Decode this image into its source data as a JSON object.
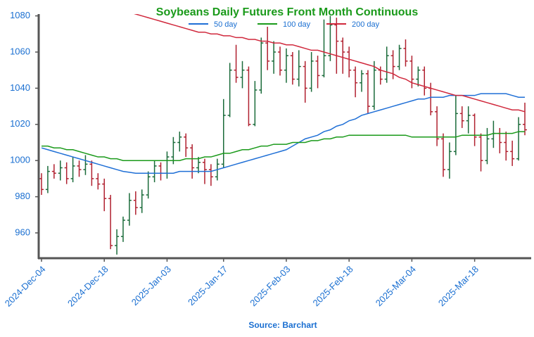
{
  "chart_data": {
    "type": "ohlc",
    "title": "Soybeans Daily Futures Front Month Continuous",
    "source": "Source: Barchart",
    "title_color": "#1a9a1a",
    "label_color": "#1a6fd1",
    "x": [
      "2024-Dec-04",
      "2024-Dec-05",
      "2024-Dec-06",
      "2024-Dec-09",
      "2024-Dec-10",
      "2024-Dec-11",
      "2024-Dec-12",
      "2024-Dec-13",
      "2024-Dec-16",
      "2024-Dec-17",
      "2024-Dec-18",
      "2024-Dec-19",
      "2024-Dec-20",
      "2024-Dec-23",
      "2024-Dec-24",
      "2024-Dec-26",
      "2024-Dec-27",
      "2024-Dec-30",
      "2024-Dec-31",
      "2025-Jan-02",
      "2025-Jan-03",
      "2025-Jan-06",
      "2025-Jan-07",
      "2025-Jan-08",
      "2025-Jan-10",
      "2025-Jan-13",
      "2025-Jan-14",
      "2025-Jan-15",
      "2025-Jan-16",
      "2025-Jan-17",
      "2025-Jan-21",
      "2025-Jan-22",
      "2025-Jan-23",
      "2025-Jan-24",
      "2025-Jan-27",
      "2025-Jan-28",
      "2025-Jan-29",
      "2025-Jan-30",
      "2025-Jan-31",
      "2025-Feb-03",
      "2025-Feb-04",
      "2025-Feb-05",
      "2025-Feb-06",
      "2025-Feb-07",
      "2025-Feb-10",
      "2025-Feb-11",
      "2025-Feb-12",
      "2025-Feb-13",
      "2025-Feb-14",
      "2025-Feb-18",
      "2025-Feb-19",
      "2025-Feb-20",
      "2025-Feb-21",
      "2025-Feb-24",
      "2025-Feb-25",
      "2025-Feb-26",
      "2025-Feb-27",
      "2025-Feb-28",
      "2025-Mar-03",
      "2025-Mar-04",
      "2025-Mar-05",
      "2025-Mar-06",
      "2025-Mar-07",
      "2025-Mar-10",
      "2025-Mar-11",
      "2025-Mar-12",
      "2025-Mar-13",
      "2025-Mar-14",
      "2025-Mar-17",
      "2025-Mar-18",
      "2025-Mar-19",
      "2025-Mar-20",
      "2025-Mar-21",
      "2025-Mar-24",
      "2025-Mar-25",
      "2025-Mar-26",
      "2025-Mar-27",
      "2025-Mar-28"
    ],
    "xticks": [
      "2024-Dec-04",
      "2024-Dec-18",
      "2025-Jan-03",
      "2025-Jan-17",
      "2025-Feb-03",
      "2025-Feb-18",
      "2025-Mar-04",
      "2025-Mar-18"
    ],
    "ylim": [
      946,
      1081
    ],
    "yticks": [
      960,
      980,
      1000,
      1020,
      1040,
      1060,
      1080
    ],
    "ohlc": {
      "up_color": "#1a6b3a",
      "down_color": "#b0202f",
      "open": [
        990,
        984,
        994,
        993,
        996,
        990,
        997,
        995,
        998,
        990,
        987,
        979,
        953,
        958,
        967,
        978,
        974,
        981,
        991,
        997,
        993,
        1002,
        1010,
        1013,
        1007,
        996,
        999,
        995,
        991,
        998,
        1025,
        1050,
        1046,
        1050,
        1020,
        1039,
        1065,
        1055,
        1060,
        1050,
        1058,
        1045,
        1052,
        1040,
        1055,
        1047,
        1058,
        1075,
        1066,
        1060,
        1050,
        1043,
        1048,
        1030,
        1050,
        1045,
        1058,
        1052,
        1062,
        1055,
        1045,
        1050,
        1040,
        1027,
        1012,
        995,
        1005,
        1026,
        1022,
        1025,
        1013,
        1000,
        1012,
        1015,
        1010,
        1005,
        1001,
        1020
      ],
      "high": [
        993,
        997,
        998,
        1000,
        999,
        1002,
        1000,
        1003,
        1000,
        993,
        990,
        981,
        962,
        969,
        982,
        983,
        984,
        994,
        1000,
        999,
        1005,
        1013,
        1016,
        1015,
        1009,
        1002,
        1001,
        998,
        1001,
        1034,
        1054,
        1064,
        1055,
        1052,
        1044,
        1068,
        1074,
        1066,
        1063,
        1062,
        1060,
        1061,
        1055,
        1060,
        1058,
        1078,
        1080,
        1079,
        1068,
        1063,
        1052,
        1050,
        1050,
        1055,
        1052,
        1063,
        1061,
        1064,
        1067,
        1058,
        1052,
        1052,
        1043,
        1030,
        1015,
        1010,
        1036,
        1030,
        1030,
        1026,
        1015,
        1018,
        1022,
        1018,
        1016,
        1011,
        1024,
        1032
      ],
      "low": [
        981,
        982,
        990,
        989,
        987,
        988,
        991,
        992,
        986,
        984,
        972,
        951,
        948,
        955,
        964,
        970,
        971,
        979,
        988,
        989,
        990,
        998,
        1005,
        1002,
        990,
        993,
        987,
        986,
        989,
        996,
        1024,
        1043,
        1040,
        1019,
        1019,
        1037,
        1050,
        1048,
        1047,
        1043,
        1042,
        1041,
        1032,
        1038,
        1040,
        1046,
        1055,
        1048,
        1048,
        1046,
        1035,
        1038,
        1026,
        1028,
        1042,
        1043,
        1045,
        1050,
        1052,
        1040,
        1041,
        1036,
        1025,
        1008,
        991,
        990,
        1003,
        1018,
        1015,
        1008,
        994,
        998,
        1007,
        1004,
        1000,
        997,
        1000,
        1014
      ],
      "close": [
        984,
        994,
        993,
        996,
        990,
        997,
        995,
        998,
        990,
        987,
        979,
        953,
        958,
        967,
        978,
        974,
        981,
        991,
        997,
        993,
        1002,
        1010,
        1013,
        1007,
        996,
        999,
        995,
        991,
        998,
        1025,
        1050,
        1046,
        1050,
        1020,
        1039,
        1065,
        1055,
        1060,
        1050,
        1058,
        1045,
        1052,
        1040,
        1055,
        1047,
        1058,
        1075,
        1066,
        1060,
        1050,
        1043,
        1048,
        1030,
        1050,
        1045,
        1058,
        1052,
        1062,
        1055,
        1045,
        1050,
        1040,
        1027,
        1012,
        995,
        1005,
        1026,
        1022,
        1025,
        1013,
        1000,
        1012,
        1015,
        1010,
        1005,
        1001,
        1020,
        1017
      ]
    },
    "series": [
      {
        "name": "50 day",
        "color": "#1f6fd6",
        "values": [
          1007,
          1006,
          1005,
          1004,
          1003,
          1002,
          1001,
          1000,
          999,
          998,
          997,
          996,
          995,
          994,
          993.5,
          993,
          993,
          993,
          993,
          993,
          993,
          993,
          994,
          994,
          994,
          994,
          994,
          994,
          995,
          996,
          997,
          998,
          999,
          1000,
          1001,
          1002,
          1003,
          1004,
          1005,
          1006,
          1008,
          1010,
          1012,
          1013,
          1014,
          1016,
          1017,
          1019,
          1020,
          1022,
          1023,
          1025,
          1026,
          1027,
          1028,
          1029,
          1030,
          1031,
          1032,
          1033,
          1034,
          1034,
          1035,
          1035,
          1035,
          1036,
          1036,
          1036,
          1036,
          1036,
          1037,
          1037,
          1037,
          1037,
          1037,
          1036,
          1035,
          1035
        ]
      },
      {
        "name": "100 day",
        "color": "#1a9a1a",
        "values": [
          1008,
          1008,
          1007,
          1007,
          1006,
          1006,
          1005,
          1004,
          1003,
          1002,
          1002,
          1001,
          1001,
          1000,
          1000,
          1000,
          1000,
          1000,
          1000,
          1000,
          1000,
          1000,
          1000,
          1001,
          1001,
          1001,
          1002,
          1002,
          1003,
          1004,
          1004,
          1005,
          1006,
          1006,
          1007,
          1008,
          1008,
          1009,
          1009,
          1009,
          1010,
          1010,
          1010,
          1011,
          1011,
          1012,
          1012,
          1013,
          1013,
          1014,
          1014,
          1014,
          1014,
          1014,
          1014,
          1014,
          1014,
          1014,
          1014,
          1013,
          1013,
          1013,
          1013,
          1013,
          1013,
          1013,
          1013,
          1014,
          1014,
          1014,
          1014,
          1014,
          1015,
          1015,
          1015,
          1015,
          1016,
          1016
        ]
      },
      {
        "name": "200 day",
        "color": "#d0283c",
        "values": [
          null,
          null,
          null,
          null,
          null,
          null,
          null,
          null,
          null,
          null,
          null,
          null,
          null,
          1083,
          1082,
          1081,
          1080,
          1079,
          1078,
          1077,
          1076,
          1075,
          1074,
          1073,
          1072,
          1071,
          1071,
          1070,
          1070,
          1069,
          1069,
          1068,
          1068,
          1067,
          1067,
          1066,
          1066,
          1065,
          1065,
          1064,
          1064,
          1063,
          1062,
          1061,
          1061,
          1060,
          1059,
          1058,
          1057,
          1056,
          1055,
          1054,
          1053,
          1052,
          1050,
          1049,
          1048,
          1046,
          1045,
          1043,
          1042,
          1041,
          1040,
          1039,
          1038,
          1037,
          1036,
          1036,
          1035,
          1034,
          1033,
          1032,
          1031,
          1030,
          1029,
          1028,
          1028,
          1027
        ]
      }
    ]
  }
}
